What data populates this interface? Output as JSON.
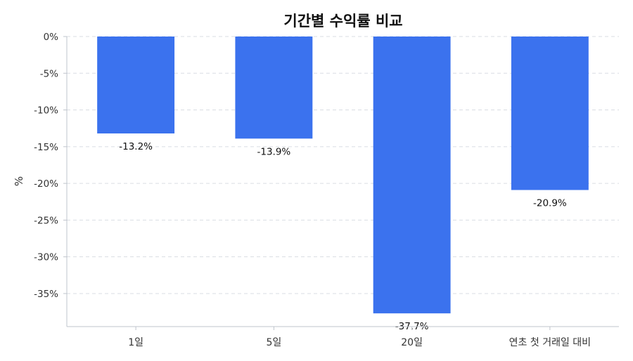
{
  "chart_data": {
    "type": "bar",
    "title": "기간별 수익률 비교",
    "xlabel": "",
    "ylabel": "%",
    "categories": [
      "1일",
      "5일",
      "20일",
      "연초 첫 거래일 대비"
    ],
    "values": [
      -13.2,
      -13.9,
      -37.7,
      -20.9
    ],
    "data_labels": [
      "-13.2%",
      "-13.9%",
      "-37.7%",
      "-20.9%"
    ],
    "ylim": [
      -39.5,
      0
    ],
    "yticks": [
      0,
      -5,
      -10,
      -15,
      -20,
      -25,
      -30,
      -35
    ],
    "ytick_labels": [
      "0%",
      "-5%",
      "-10%",
      "-15%",
      "-20%",
      "-25%",
      "-30%",
      "-35%"
    ],
    "grid": true,
    "bar_color": "#3b72ee"
  }
}
